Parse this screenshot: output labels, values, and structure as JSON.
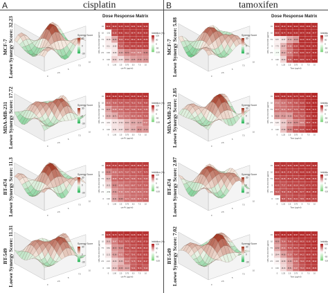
{
  "panels": [
    {
      "letter": "A",
      "drug": "cisplatin",
      "x_axis_label": "cis-Pt (μg/ml)"
    },
    {
      "letter": "B",
      "drug": "tamoxifen",
      "x_axis_label": "Tam (μg/ml)"
    }
  ],
  "dose_header": "Dose Response Matrix",
  "y_axis_label": "HRL-SU-102-004 (μg/ml)",
  "surface_legend_title": "Synergy Score",
  "surface_legend_ticks": [
    "30",
    "0",
    "-30"
  ],
  "matrix_legend_title": "Inhibition (%)",
  "matrix_legend_ticks": [
    "100",
    "50",
    "0",
    "-50",
    "-100"
  ],
  "dose_ticks": {
    "cisplatin": [
      "0",
      "1.00",
      "2.5",
      "3.75",
      "5.5",
      "7.5",
      "10"
    ],
    "tamoxifen": [
      "0",
      "1.25",
      "2.5",
      "3.75",
      "5",
      "7.5",
      "10"
    ],
    "compound_y": [
      "0",
      "2.5",
      "5",
      "7.5",
      "10",
      "15"
    ]
  },
  "chart_data": [
    {
      "type": "heatmap",
      "panel": "A",
      "cell_line": "MCF-7",
      "row_label_line1": "MCF-7",
      "row_label_line2": "Loewe Synergy Score: 32.23",
      "values": [
        [
          "90.21",
          "90.03",
          "91.45",
          "91.60",
          "92.81",
          "91.80",
          "91.90"
        ],
        [
          "-1.91",
          "81.00",
          "89.81",
          "88.12",
          "89.74",
          "89.50",
          "90.56"
        ],
        [
          "10.28",
          "40.35",
          "78.40",
          "87.44",
          "89.12",
          "89.25",
          "89.58"
        ],
        [
          "8.11",
          "10.82",
          "72.18",
          "83.51",
          "85.90",
          "85.59",
          "86.70"
        ],
        [
          "0.00",
          "10.83",
          "41.26",
          "53.70",
          "57.49",
          "55.21",
          "54.69"
        ],
        [
          "0.00",
          "20.94",
          "14.46",
          "35.50",
          "43.55",
          "47.00",
          "47.70"
        ]
      ]
    },
    {
      "type": "heatmap",
      "panel": "B",
      "cell_line": "MCF-7",
      "row_label_line1": "MCF-7",
      "row_label_line2": "Loewe Synergy Score: 5.88",
      "values": [
        [
          "93.49",
          "95.19",
          "95.30",
          "96.29",
          "95.90",
          "95.86",
          "94.44"
        ],
        [
          "88.65",
          "93.74",
          "94.16",
          "93.90",
          "94.74",
          "94.88",
          "94.77"
        ],
        [
          "6.57",
          "12.67",
          "37.44",
          "46.18",
          "94.19",
          "93.40",
          "94.88"
        ],
        [
          "7.75",
          "34.47",
          "64.88",
          "83.54",
          "93.80",
          "94.38",
          "94.74"
        ],
        [
          "-7.77",
          "39.12",
          "61.00",
          "80.16",
          "91.64",
          "91.17",
          "94.28"
        ],
        [
          "0.00",
          "20.44",
          "73.94",
          "89.33",
          "89.50",
          "91.71",
          "95.78"
        ]
      ]
    },
    {
      "type": "heatmap",
      "panel": "A",
      "cell_line": "MDA-MB-231",
      "row_label_line1": "MDA-MB-231",
      "row_label_line2": "Loewe Synergy Score: 17.72",
      "values": [
        [
          "95.48",
          "94.39",
          "93.21",
          "94.20",
          "93.48",
          "93.19",
          "93.61"
        ],
        [
          "66.25",
          "70.60",
          "73.44",
          "74.44",
          "75.10",
          "75.32",
          "78.80"
        ],
        [
          "42.07",
          "62.08",
          "65.39",
          "71.39",
          "71.90",
          "73.19",
          "72.56"
        ],
        [
          "34.29",
          "38.71",
          "58.29",
          "62.70",
          "68.28",
          "69.46",
          "72.48"
        ],
        [
          "4.19",
          "12.70",
          "17.33",
          "30.30",
          "39.30",
          "41.13",
          "57.27"
        ],
        [
          "0.00",
          "12.81",
          "14.07",
          "30.57",
          "36.33",
          "49.12",
          "47.19"
        ]
      ]
    },
    {
      "type": "heatmap",
      "panel": "B",
      "cell_line": "MDA-MB-231",
      "row_label_line1": "MDA-MB-231",
      "row_label_line2": "Loewe Synergy Score: 2.85",
      "values": [
        [
          "94.56",
          "94.99",
          "94.04",
          "94.75",
          "94.81",
          "95.88",
          "98.60"
        ],
        [
          "57.03",
          "63.24",
          "70.49",
          "76.85",
          "82.60",
          "93.36",
          "95.79"
        ],
        [
          "62.47",
          "62.14",
          "68.17",
          "73.76",
          "79.40",
          "93.18",
          "94.71"
        ],
        [
          "45.68",
          "47.13",
          "43.68",
          "72.43",
          "73.17",
          "88.60",
          "94.19"
        ],
        [
          "6.26",
          "23.40",
          "40.32",
          "53.75",
          "59.31",
          "86.07",
          "91.64"
        ],
        [
          "0.00",
          "27.80",
          "54.33",
          "75.98",
          "81.45",
          "91.13",
          "95.75"
        ]
      ]
    },
    {
      "type": "heatmap",
      "panel": "A",
      "cell_line": "BT-474",
      "row_label_line1": "BT-474",
      "row_label_line2": "Loewe Synergy Score: 11.3",
      "values": [
        [
          "88.98",
          "87.44",
          "88.14",
          "89.77",
          "89.28",
          "88.39",
          "88.79"
        ],
        [
          "54.56",
          "64.25",
          "69.76",
          "72.07",
          "73.92",
          "74.77",
          "79.75"
        ],
        [
          "30.47",
          "68.08",
          "70.88",
          "72.05",
          "70.39",
          "74.14",
          "73.45"
        ],
        [
          "19.21",
          "54.92",
          "60.36",
          "66.53",
          "68.67",
          "71.07",
          "72.04"
        ],
        [
          "-4.54",
          "47.64",
          "57.69",
          "62.59",
          "66.18",
          "66.16",
          "67.60"
        ],
        [
          "0.00",
          "40.91",
          "52.08",
          "62.71",
          "64.39",
          "66.75",
          "69.54"
        ]
      ]
    },
    {
      "type": "heatmap",
      "panel": "B",
      "cell_line": "BT-474",
      "row_label_line1": "BT-474",
      "row_label_line2": "Loewe Synergy Score: 2.07",
      "values": [
        [
          "91.68",
          "92.43",
          "90.46",
          "92.88",
          "92.56",
          "93.87",
          "92.98"
        ],
        [
          "88.60",
          "88.45",
          "87.65",
          "87.65",
          "92.09",
          "91.58",
          "91.36"
        ],
        [
          "83.33",
          "82.38",
          "85.37",
          "84.86",
          "86.40",
          "90.88",
          "88.36"
        ],
        [
          "81.35",
          "77.17",
          "82.82",
          "83.18",
          "84.32",
          "87.70",
          "87.73"
        ],
        [
          "73.10",
          "79.62",
          "80.21",
          "84.61",
          "82.77",
          "88.20",
          "88.99"
        ],
        [
          "0.00",
          "78.87",
          "78.03",
          "82.44",
          "78.51",
          "86.48",
          "83.70"
        ]
      ]
    },
    {
      "type": "heatmap",
      "panel": "A",
      "cell_line": "BT-549",
      "row_label_line1": "BT-549",
      "row_label_line2": "Loewe Synergy Score: 11.31",
      "values": [
        [
          "91.05",
          "92.73",
          "91.73",
          "94.83",
          "91.96",
          "93.84",
          "92.48"
        ],
        [
          "29.01",
          "58.47",
          "73.12",
          "76.79",
          "82.27",
          "84.82",
          "87.39"
        ],
        [
          "9.52",
          "49.72",
          "54.28",
          "77.01",
          "78.60",
          "83.50",
          "84.13"
        ],
        [
          "11.21",
          "42.68",
          "56.21",
          "74.07",
          "75.41",
          "82.62",
          "83.31"
        ],
        [
          "2.21",
          "23.33",
          "33.35",
          "62.19",
          "71.76",
          "78.52",
          "82.27"
        ],
        [
          "0.00",
          "26.29",
          "43.38",
          "42.10",
          "72.31",
          "79.79",
          "74.20"
        ]
      ]
    },
    {
      "type": "heatmap",
      "panel": "B",
      "cell_line": "BT-549",
      "row_label_line1": "BT-549",
      "row_label_line2": "Loewe Synergy Score: 7.02",
      "values": [
        [
          "94.73",
          "95.18",
          "94.85",
          "95.97",
          "95.94",
          "94.56",
          "95.14"
        ],
        [
          "48.96",
          "70.24",
          "79.85",
          "84.12",
          "88.29",
          "91.38",
          "93.47"
        ],
        [
          "41.52",
          "65.34",
          "75.78",
          "80.79",
          "85.89",
          "90.82",
          "91.82"
        ],
        [
          "19.44",
          "44.06",
          "63.19",
          "76.47",
          "84.13",
          "88.99",
          "88.76"
        ],
        [
          "4.93",
          "22.59",
          "41.99",
          "64.86",
          "79.20",
          "87.05",
          "89.02"
        ],
        [
          "0.00",
          "18.16",
          "38.51",
          "62.07",
          "75.13",
          "84.94",
          "86.83"
        ]
      ]
    }
  ]
}
